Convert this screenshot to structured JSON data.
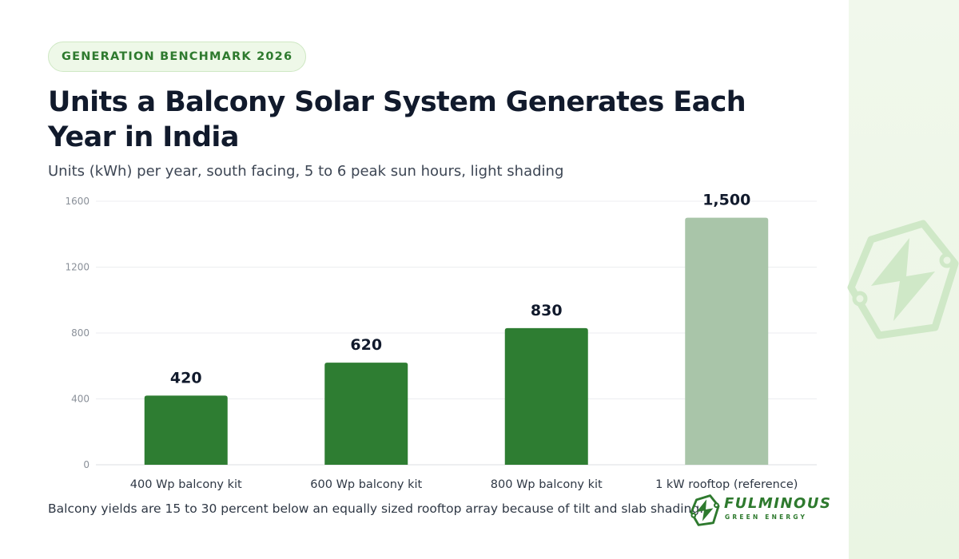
{
  "badge": "GENERATION BENCHMARK 2026",
  "colors": {
    "primary_bar": "#2e7d32",
    "reference_bar": "#a9c5a9",
    "accent": "#2e7a2e"
  },
  "brand": {
    "name": "FULMINOUS",
    "tagline": "GREEN ENERGY",
    "icon": "lightning-hex-logo-icon"
  },
  "chart_data": {
    "type": "bar",
    "title": "Units a Balcony Solar System Generates Each Year in India",
    "subtitle": "Units (kWh) per year, south facing, 5 to 6 peak sun hours, light shading",
    "categories": [
      "400 Wp balcony kit",
      "600 Wp balcony kit",
      "800 Wp balcony kit",
      "1 kW rooftop (reference)"
    ],
    "values": [
      420,
      620,
      830,
      1500
    ],
    "value_labels": [
      "420",
      "620",
      "830",
      "1,500"
    ],
    "highlight": [
      "primary",
      "primary",
      "primary",
      "reference"
    ],
    "ylim": [
      0,
      1600
    ],
    "yticks": [
      0,
      400,
      800,
      1200,
      1600
    ],
    "xlabel": "",
    "ylabel": "",
    "grid": true,
    "legend": "none",
    "footnote": "Balcony yields are 15 to 30 percent below an equally sized rooftop array because of tilt and slab shading."
  }
}
